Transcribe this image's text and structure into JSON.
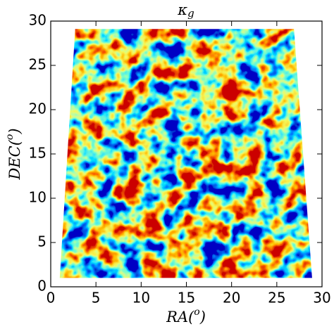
{
  "chart_data": {
    "type": "map",
    "title": {
      "symbol": "κ",
      "subscript": "g"
    },
    "xlabel": [
      "RA(",
      "o",
      ")"
    ],
    "ylabel": [
      "DEC(",
      "o",
      ")"
    ],
    "xlim": [
      0,
      30
    ],
    "ylim": [
      0,
      30
    ],
    "xticks": [
      0,
      5,
      10,
      15,
      20,
      25,
      30
    ],
    "yticks": [
      0,
      5,
      10,
      15,
      20,
      25,
      30
    ],
    "colormap": "jet",
    "footprint": {
      "ra": [
        1.0,
        2.7,
        26.9,
        28.9
      ],
      "dec": [
        1.0,
        29.1,
        29.1,
        1.0
      ]
    }
  }
}
